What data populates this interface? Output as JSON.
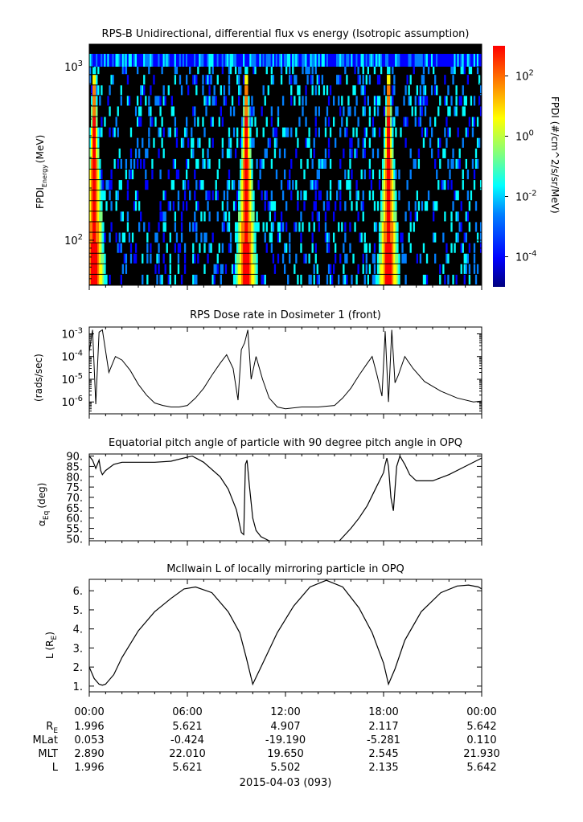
{
  "chart_data": [
    {
      "type": "heatmap",
      "title": "RPS-B  Unidirectional, differential flux vs energy (Isotropic assumption)",
      "ylabel_main": "FPDI",
      "ylabel_sub": "Energy",
      "ylabel_unit": "(MeV)",
      "yscale": "log",
      "ylim": [
        55,
        1350
      ],
      "yticks": [
        {
          "value": 100,
          "base": "10",
          "exp": "2"
        },
        {
          "value": 1000,
          "base": "10",
          "exp": "3"
        }
      ],
      "colorbar": {
        "label": "FPDI (#/cm^2/s/sr/MeV)",
        "scale": "log",
        "range": [
          1e-05,
          1000.0
        ],
        "ticks": [
          {
            "value": 100.0,
            "base": "10",
            "exp": "2"
          },
          {
            "value": 1.0,
            "base": "10",
            "exp": "0"
          },
          {
            "value": 0.01,
            "base": "10",
            "exp": "-2"
          },
          {
            "value": 0.0001,
            "base": "10",
            "exp": "-4"
          }
        ]
      },
      "belt_crossings_hours": [
        0.3,
        9.6,
        18.3
      ],
      "colors": [
        "#00007f",
        "#0000ff",
        "#007fff",
        "#00ffff",
        "#7fff7f",
        "#ffff00",
        "#ff7f00",
        "#ff0000",
        "#7f0000"
      ]
    },
    {
      "type": "line",
      "title": "RPS  Dose rate in Dosimeter 1 (front)",
      "ylabel": "(rads/sec)",
      "yscale": "log",
      "ylim": [
        3e-07,
        0.002
      ],
      "yticks": [
        {
          "value": 0.001,
          "base": "10",
          "exp": "-3"
        },
        {
          "value": 0.0001,
          "base": "10",
          "exp": "-4"
        },
        {
          "value": 1e-05,
          "base": "10",
          "exp": "-5"
        },
        {
          "value": 1e-06,
          "base": "10",
          "exp": "-6"
        }
      ],
      "x": [
        0,
        0.2,
        0.4,
        0.6,
        0.8,
        1.2,
        1.6,
        2,
        2.5,
        3,
        3.5,
        4,
        4.5,
        5,
        5.5,
        6,
        6.5,
        7,
        7.5,
        8,
        8.4,
        8.8,
        9.1,
        9.3,
        9.5,
        9.7,
        9.9,
        10.2,
        10.6,
        11,
        11.5,
        12,
        13,
        14,
        15,
        15.5,
        16,
        16.5,
        17,
        17.3,
        17.6,
        17.9,
        18.1,
        18.3,
        18.5,
        18.7,
        18.9,
        19.3,
        19.8,
        20.5,
        21.5,
        22.5,
        23.5,
        24
      ],
      "values": [
        0.00016,
        0.0015,
        8e-07,
        0.0012,
        0.0015,
        2e-05,
        0.0001,
        7e-05,
        2.5e-05,
        6e-06,
        2e-06,
        9e-07,
        7e-07,
        6e-07,
        6e-07,
        7e-07,
        1.5e-06,
        4e-06,
        1.5e-05,
        5e-05,
        0.00012,
        3e-05,
        1.2e-06,
        0.0002,
        0.0004,
        0.0015,
        1e-05,
        0.0001,
        1e-05,
        1.5e-06,
        6e-07,
        5e-07,
        6e-07,
        6e-07,
        7e-07,
        1.5e-06,
        4e-06,
        1.5e-05,
        5e-05,
        0.0001,
        1.5e-05,
        1.8e-06,
        0.0013,
        1e-06,
        0.0015,
        7e-06,
        1.5e-05,
        0.0001,
        3e-05,
        8e-06,
        3e-06,
        1.5e-06,
        1e-06,
        1.1e-06
      ]
    },
    {
      "type": "line",
      "title": "Equatorial pitch angle of particle with 90 degree pitch angle in OPQ",
      "ylabel_main": "α",
      "ylabel_sub": "Eq",
      "ylabel_unit": "(deg)",
      "ylim": [
        49,
        91
      ],
      "yticks": [
        90,
        85,
        80,
        75,
        70,
        65,
        60,
        55,
        50
      ],
      "ytick_labels": [
        "90.",
        "85.",
        "80.",
        "75.",
        "70.",
        "65.",
        "60.",
        "55.",
        "50."
      ],
      "x": [
        0,
        0.2,
        0.4,
        0.6,
        0.7,
        0.8,
        1,
        1.5,
        2,
        3,
        4,
        5,
        6,
        6.3,
        7,
        8,
        8.5,
        9,
        9.3,
        9.45,
        9.55,
        9.65,
        9.8,
        10,
        10.2,
        10.5,
        11
      ],
      "values": [
        90,
        88,
        84,
        88,
        83,
        81,
        83,
        86,
        87,
        87,
        87,
        87.5,
        89.5,
        90,
        87,
        80,
        74,
        64,
        53,
        52,
        86,
        88,
        75,
        60,
        54,
        51,
        49
      ],
      "x2": [
        15.3,
        16,
        16.5,
        17,
        17.5,
        18,
        18.1,
        18.2,
        18.3,
        18.45,
        18.6,
        18.8,
        19,
        19.3,
        19.6,
        20,
        21,
        22,
        23,
        24
      ],
      "values2": [
        49,
        55,
        60,
        66,
        74,
        82,
        86,
        89,
        85,
        70,
        63.5,
        85,
        90,
        86,
        81,
        78,
        78,
        81,
        85,
        89
      ]
    },
    {
      "type": "line",
      "title": "McIlwain L of locally mirroring particle in OPQ",
      "ylabel_main": "L (R",
      "ylabel_sub": "E",
      "ylabel_close": ")",
      "ylim": [
        0.7,
        6.6
      ],
      "yticks": [
        6,
        5,
        4,
        3,
        2,
        1
      ],
      "ytick_labels": [
        "6.",
        "5.",
        "4.",
        "3.",
        "2.",
        "1."
      ],
      "x": [
        0,
        0.3,
        0.6,
        0.8,
        1,
        1.5,
        2,
        3,
        4,
        5,
        5.8,
        6.5,
        7.5,
        8.5,
        9.2,
        9.6,
        10,
        10.5,
        11.5,
        12.5,
        13.5,
        14.5,
        15.5,
        16.5,
        17.3,
        18.0,
        18.3,
        18.7,
        19.3,
        20.3,
        21.5,
        22.5,
        23.2,
        23.8,
        24
      ],
      "values": [
        2.0,
        1.4,
        1.1,
        1.05,
        1.1,
        1.6,
        2.5,
        3.9,
        4.9,
        5.6,
        6.1,
        6.2,
        5.9,
        4.9,
        3.8,
        2.5,
        1.1,
        2.0,
        3.8,
        5.2,
        6.2,
        6.55,
        6.2,
        5.1,
        3.8,
        2.2,
        1.1,
        1.9,
        3.4,
        4.9,
        5.9,
        6.25,
        6.3,
        6.2,
        6.1
      ]
    }
  ],
  "x_axis": {
    "tick_labels": [
      "00:00",
      "06:00",
      "12:00",
      "18:00",
      "00:00"
    ],
    "date_label": "2015-04-03 (093)"
  },
  "ephemeris": {
    "rows": [
      {
        "label": "R",
        "label_sub": "E",
        "values": [
          "1.996",
          "5.621",
          "4.907",
          "2.117",
          "5.642"
        ]
      },
      {
        "label": "MLat",
        "label_sub": "",
        "values": [
          "0.053",
          "-0.424",
          "-19.190",
          "-5.281",
          "0.110"
        ]
      },
      {
        "label": "MLT",
        "label_sub": "",
        "values": [
          "2.890",
          "22.010",
          "19.650",
          "2.545",
          "21.930"
        ]
      },
      {
        "label": "L",
        "label_sub": "",
        "values": [
          "1.996",
          "5.621",
          "5.502",
          "2.135",
          "5.642"
        ]
      }
    ]
  }
}
